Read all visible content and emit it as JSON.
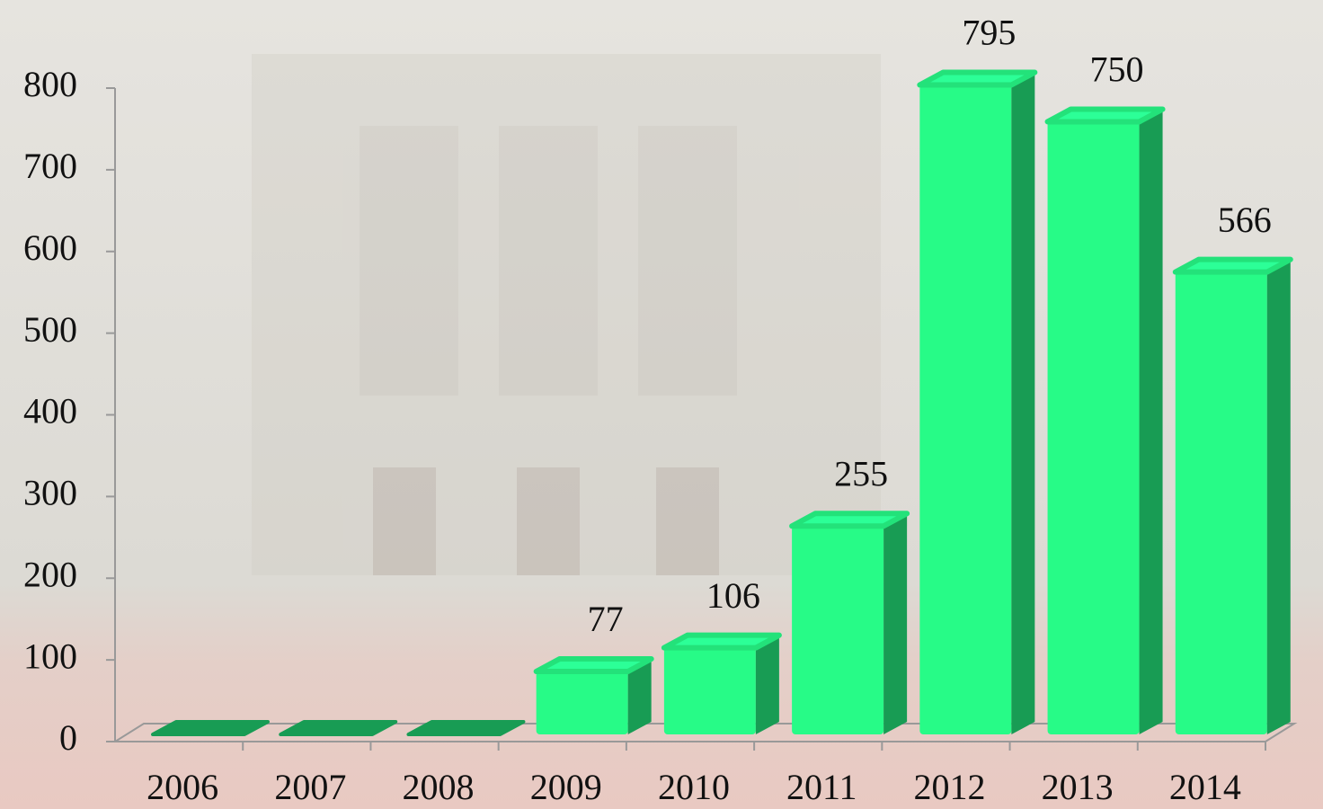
{
  "chart_data": {
    "type": "bar3d",
    "categories": [
      "2006",
      "2007",
      "2008",
      "2009",
      "2010",
      "2011",
      "2012",
      "2013",
      "2014"
    ],
    "values": [
      0,
      0,
      0,
      77,
      106,
      255,
      795,
      750,
      566
    ],
    "color": "#27fb87",
    "ylim": [
      0,
      800
    ],
    "yticks": [
      0,
      100,
      200,
      300,
      400,
      500,
      600,
      700,
      800
    ]
  }
}
